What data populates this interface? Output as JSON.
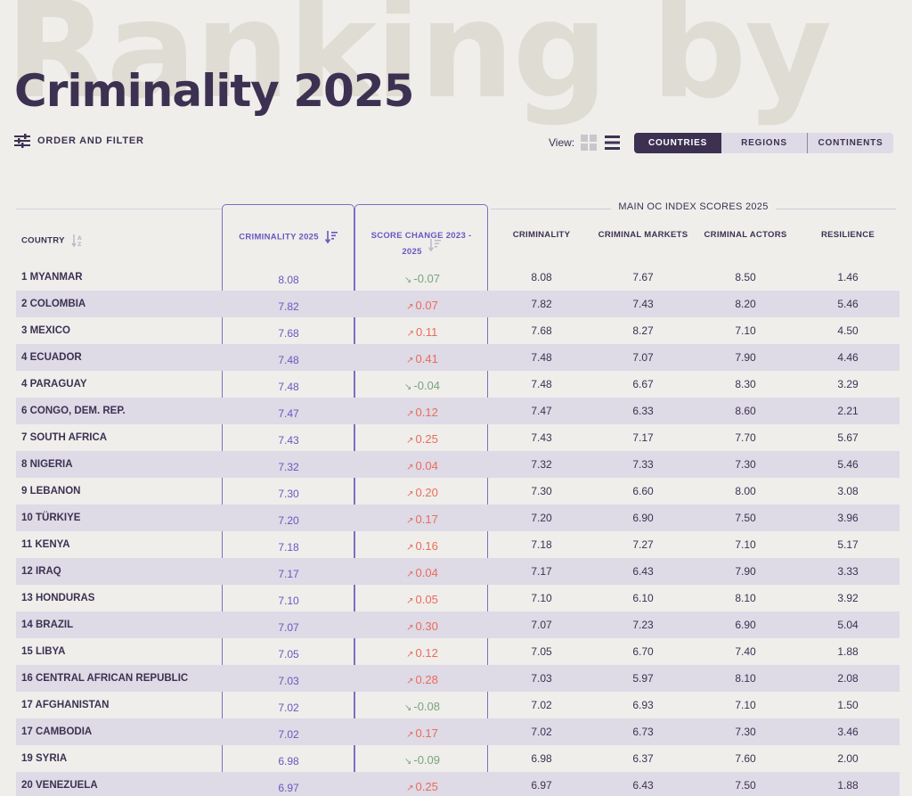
{
  "page": {
    "bg_title": "Ranking by",
    "title": "Criminality 2025"
  },
  "toolbar": {
    "filter_label": "ORDER AND FILTER",
    "view_label": "View:",
    "tabs": [
      {
        "label": "COUNTRIES",
        "active": true
      },
      {
        "label": "REGIONS",
        "active": false
      },
      {
        "label": "CONTINENTS",
        "active": false
      }
    ]
  },
  "table": {
    "group_header": "MAIN OC INDEX SCORES 2025",
    "headers": {
      "country": "COUNTRY",
      "criminality_2025": "CRIMINALITY 2025",
      "score_change_line1": "SCORE CHANGE 2023 -",
      "score_change_line2": "2025",
      "criminality": "CRIMINALITY",
      "criminal_markets": "CRIMINAL MARKETS",
      "criminal_actors": "CRIMINAL ACTORS",
      "resilience": "RESILIENCE"
    },
    "rows": [
      {
        "country": "1 MYANMAR",
        "crim": "8.08",
        "dir": "down",
        "change": "-0.07",
        "criminality": "8.08",
        "markets": "7.67",
        "actors": "8.50",
        "resilience": "1.46"
      },
      {
        "country": "2 COLOMBIA",
        "crim": "7.82",
        "dir": "up",
        "change": "0.07",
        "criminality": "7.82",
        "markets": "7.43",
        "actors": "8.20",
        "resilience": "5.46"
      },
      {
        "country": "3 MEXICO",
        "crim": "7.68",
        "dir": "up",
        "change": "0.11",
        "criminality": "7.68",
        "markets": "8.27",
        "actors": "7.10",
        "resilience": "4.50"
      },
      {
        "country": "4 ECUADOR",
        "crim": "7.48",
        "dir": "up",
        "change": "0.41",
        "criminality": "7.48",
        "markets": "7.07",
        "actors": "7.90",
        "resilience": "4.46"
      },
      {
        "country": "4 PARAGUAY",
        "crim": "7.48",
        "dir": "down",
        "change": "-0.04",
        "criminality": "7.48",
        "markets": "6.67",
        "actors": "8.30",
        "resilience": "3.29"
      },
      {
        "country": "6 CONGO, DEM. REP.",
        "crim": "7.47",
        "dir": "up",
        "change": "0.12",
        "criminality": "7.47",
        "markets": "6.33",
        "actors": "8.60",
        "resilience": "2.21"
      },
      {
        "country": "7 SOUTH AFRICA",
        "crim": "7.43",
        "dir": "up",
        "change": "0.25",
        "criminality": "7.43",
        "markets": "7.17",
        "actors": "7.70",
        "resilience": "5.67"
      },
      {
        "country": "8 NIGERIA",
        "crim": "7.32",
        "dir": "up",
        "change": "0.04",
        "criminality": "7.32",
        "markets": "7.33",
        "actors": "7.30",
        "resilience": "5.46"
      },
      {
        "country": "9 LEBANON",
        "crim": "7.30",
        "dir": "up",
        "change": "0.20",
        "criminality": "7.30",
        "markets": "6.60",
        "actors": "8.00",
        "resilience": "3.08"
      },
      {
        "country": "10 TÜRKIYE",
        "crim": "7.20",
        "dir": "up",
        "change": "0.17",
        "criminality": "7.20",
        "markets": "6.90",
        "actors": "7.50",
        "resilience": "3.96"
      },
      {
        "country": "11 KENYA",
        "crim": "7.18",
        "dir": "up",
        "change": "0.16",
        "criminality": "7.18",
        "markets": "7.27",
        "actors": "7.10",
        "resilience": "5.17"
      },
      {
        "country": "12 IRAQ",
        "crim": "7.17",
        "dir": "up",
        "change": "0.04",
        "criminality": "7.17",
        "markets": "6.43",
        "actors": "7.90",
        "resilience": "3.33"
      },
      {
        "country": "13 HONDURAS",
        "crim": "7.10",
        "dir": "up",
        "change": "0.05",
        "criminality": "7.10",
        "markets": "6.10",
        "actors": "8.10",
        "resilience": "3.92"
      },
      {
        "country": "14 BRAZIL",
        "crim": "7.07",
        "dir": "up",
        "change": "0.30",
        "criminality": "7.07",
        "markets": "7.23",
        "actors": "6.90",
        "resilience": "5.04"
      },
      {
        "country": "15 LIBYA",
        "crim": "7.05",
        "dir": "up",
        "change": "0.12",
        "criminality": "7.05",
        "markets": "6.70",
        "actors": "7.40",
        "resilience": "1.88"
      },
      {
        "country": "16 CENTRAL AFRICAN REPUBLIC",
        "crim": "7.03",
        "dir": "up",
        "change": "0.28",
        "criminality": "7.03",
        "markets": "5.97",
        "actors": "8.10",
        "resilience": "2.08"
      },
      {
        "country": "17 AFGHANISTAN",
        "crim": "7.02",
        "dir": "down",
        "change": "-0.08",
        "criminality": "7.02",
        "markets": "6.93",
        "actors": "7.10",
        "resilience": "1.50"
      },
      {
        "country": "17 CAMBODIA",
        "crim": "7.02",
        "dir": "up",
        "change": "0.17",
        "criminality": "7.02",
        "markets": "6.73",
        "actors": "7.30",
        "resilience": "3.46"
      },
      {
        "country": "19 SYRIA",
        "crim": "6.98",
        "dir": "down",
        "change": "-0.09",
        "criminality": "6.98",
        "markets": "6.37",
        "actors": "7.60",
        "resilience": "2.00"
      },
      {
        "country": "20 VENEZUELA",
        "crim": "6.97",
        "dir": "up",
        "change": "0.25",
        "criminality": "6.97",
        "markets": "6.43",
        "actors": "7.50",
        "resilience": "1.88"
      }
    ]
  },
  "colors": {
    "accent": "#3d3152",
    "highlight": "#6a57c0",
    "up": "#ea6b5d",
    "down": "#7aa37f",
    "row_alt": "#dedae6"
  }
}
